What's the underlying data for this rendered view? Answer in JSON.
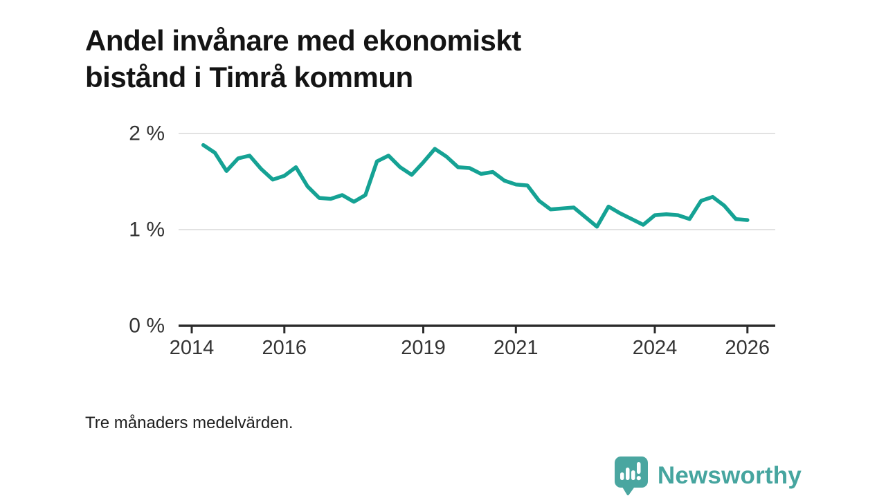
{
  "title": "Andel invånare med ekonomiskt bistånd i Timrå kommun",
  "footnote": "Tre månaders medelvärden.",
  "branding": {
    "name": "Newsworthy",
    "logo_icon": "speech-bubble-bar-chart-icon",
    "brand_color": "#46a59f"
  },
  "chart_data": {
    "type": "line",
    "title": "Andel invånare med ekonomiskt bistånd i Timrå kommun",
    "xlabel": "",
    "ylabel": "",
    "x_unit": "year",
    "y_unit": "%",
    "x": [
      2014.25,
      2014.5,
      2014.75,
      2015.0,
      2015.25,
      2015.5,
      2015.75,
      2016.0,
      2016.25,
      2016.5,
      2016.75,
      2017.0,
      2017.25,
      2017.5,
      2017.75,
      2018.0,
      2018.25,
      2018.5,
      2018.75,
      2019.0,
      2019.25,
      2019.5,
      2019.75,
      2020.0,
      2020.25,
      2020.5,
      2020.75,
      2021.0,
      2021.25,
      2021.5,
      2021.75,
      2022.0,
      2022.25,
      2022.5,
      2022.75,
      2023.0,
      2023.25,
      2023.5,
      2023.75,
      2024.0,
      2024.25,
      2024.5,
      2024.75,
      2025.0,
      2025.25,
      2025.5,
      2025.75,
      2026.0
    ],
    "y": [
      1.88,
      1.8,
      1.61,
      1.74,
      1.77,
      1.63,
      1.52,
      1.56,
      1.65,
      1.45,
      1.33,
      1.32,
      1.36,
      1.29,
      1.36,
      1.71,
      1.77,
      1.65,
      1.57,
      1.7,
      1.84,
      1.76,
      1.65,
      1.64,
      1.58,
      1.6,
      1.51,
      1.47,
      1.46,
      1.3,
      1.21,
      1.22,
      1.23,
      1.13,
      1.03,
      1.24,
      1.17,
      1.11,
      1.05,
      1.15,
      1.16,
      1.15,
      1.11,
      1.3,
      1.34,
      1.25,
      1.11,
      1.1
    ],
    "x_ticks": [
      2014,
      2016,
      2019,
      2021,
      2024,
      2026
    ],
    "y_ticks": [
      {
        "value": 0,
        "label": "0 %"
      },
      {
        "value": 1,
        "label": "1 %"
      },
      {
        "value": 2,
        "label": "2 %"
      }
    ],
    "xlim": [
      2013.72,
      2026.62
    ],
    "ylim": [
      0,
      2.0
    ],
    "grid": true,
    "legend": "none",
    "line_color": "#15a294",
    "grid_color": "#d9d9d9",
    "axis_color": "#2b2b2b",
    "tick_label_color": "#333333"
  }
}
